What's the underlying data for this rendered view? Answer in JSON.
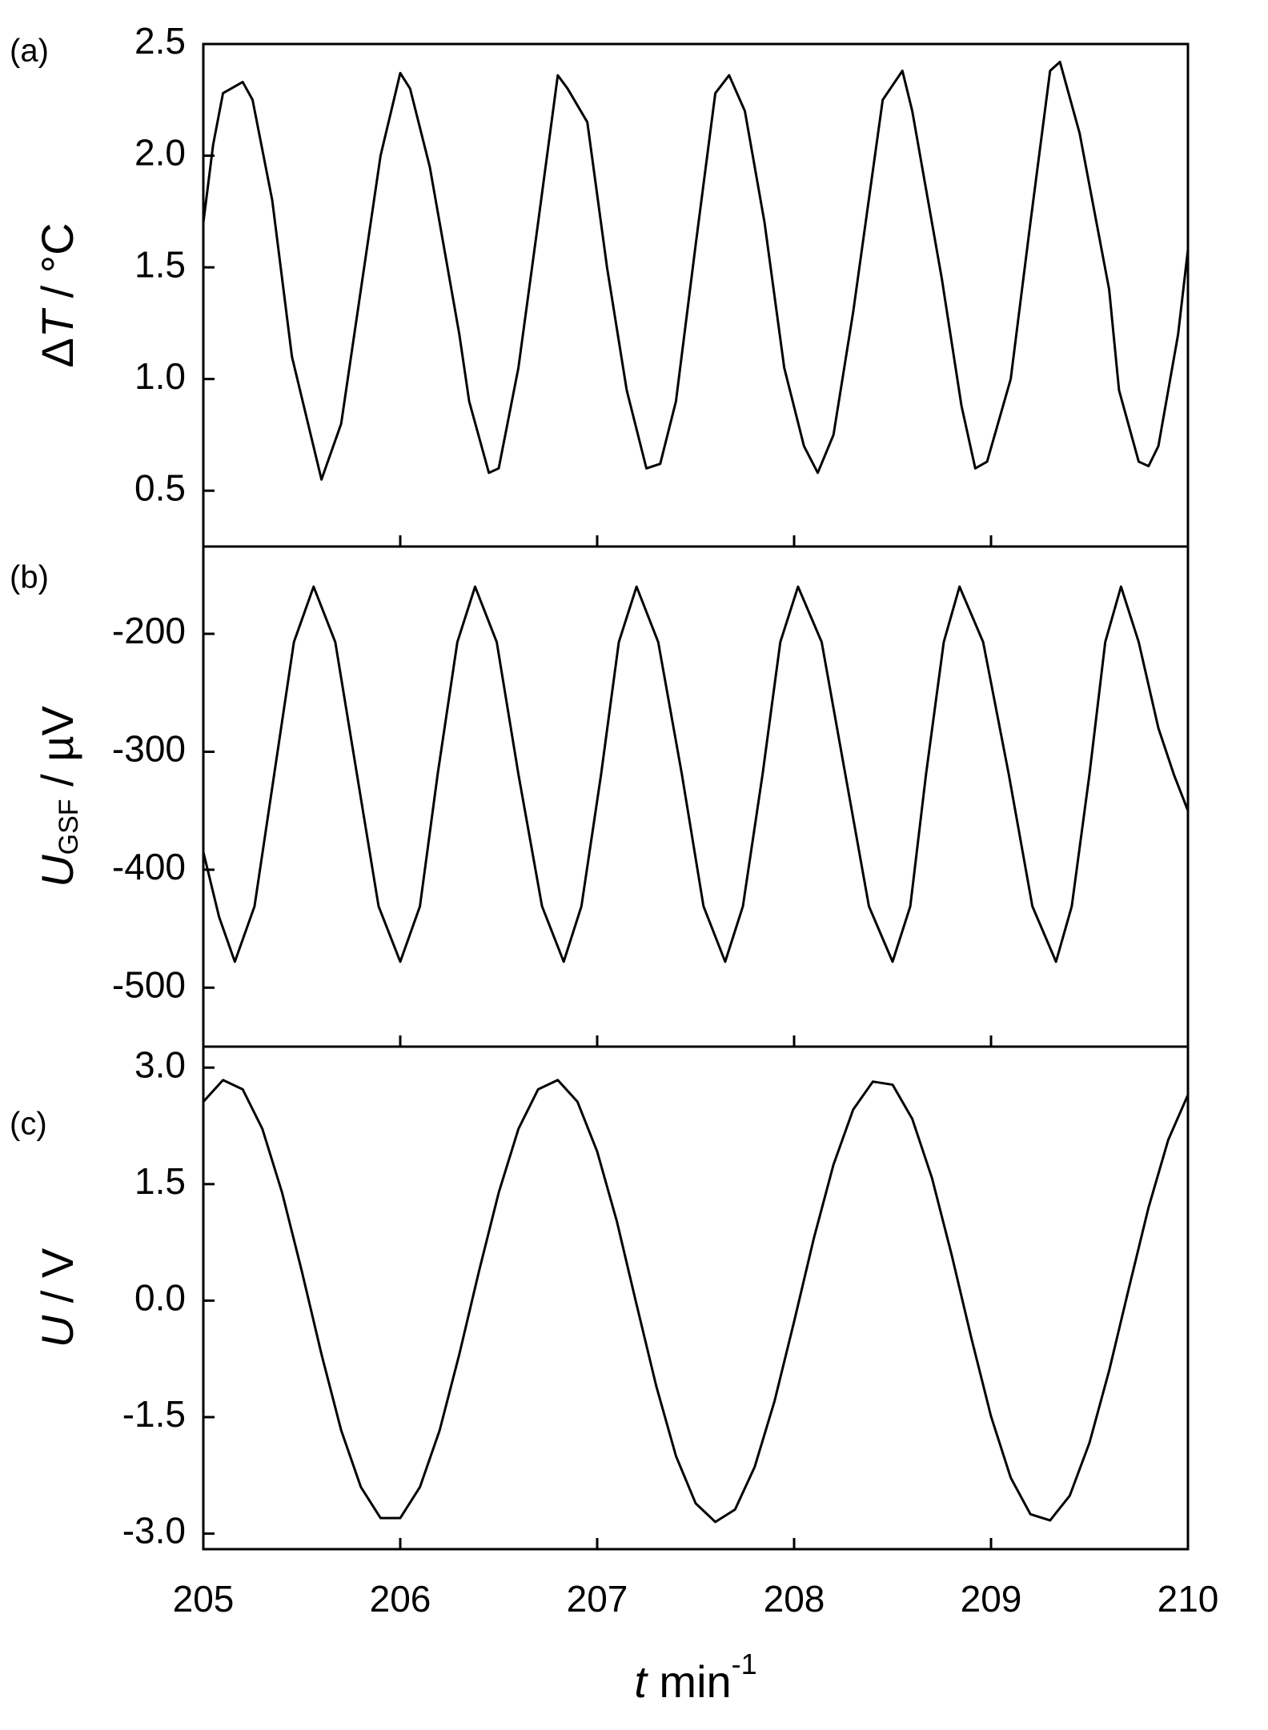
{
  "chart_data": [
    {
      "type": "line",
      "label": "(a)",
      "ylabel": [
        "Δ",
        "T",
        " / °C"
      ],
      "xlim": [
        205,
        210
      ],
      "xticks": [
        205,
        206,
        207,
        208,
        209,
        210
      ],
      "ylim": [
        0.25,
        2.5
      ],
      "yticks": [
        0.5,
        {
          "value": 1.0,
          "label": "1.0"
        },
        1.5,
        {
          "value": 2.0,
          "label": "2.0"
        },
        2.5
      ],
      "color": "#000000",
      "x": [
        205.0,
        205.05,
        205.1,
        205.2,
        205.25,
        205.35,
        205.45,
        205.6,
        205.7,
        205.8,
        205.9,
        206.0,
        206.05,
        206.15,
        206.3,
        206.35,
        206.45,
        206.5,
        206.6,
        206.7,
        206.8,
        206.85,
        206.95,
        207.05,
        207.15,
        207.25,
        207.32,
        207.4,
        207.5,
        207.6,
        207.67,
        207.75,
        207.85,
        207.95,
        208.05,
        208.12,
        208.2,
        208.3,
        208.45,
        208.55,
        208.6,
        208.75,
        208.85,
        208.92,
        208.98,
        209.1,
        209.2,
        209.3,
        209.35,
        209.45,
        209.6,
        209.65,
        209.75,
        209.8,
        209.85,
        209.95,
        210.0
      ],
      "values": [
        1.7,
        2.05,
        2.28,
        2.33,
        2.25,
        1.8,
        1.1,
        0.55,
        0.8,
        1.4,
        2.0,
        2.37,
        2.3,
        1.95,
        1.2,
        0.9,
        0.58,
        0.6,
        1.05,
        1.7,
        2.36,
        2.3,
        2.15,
        1.5,
        0.95,
        0.6,
        0.62,
        0.9,
        1.6,
        2.28,
        2.36,
        2.2,
        1.7,
        1.05,
        0.7,
        0.58,
        0.75,
        1.3,
        2.25,
        2.38,
        2.2,
        1.45,
        0.88,
        0.6,
        0.63,
        1.0,
        1.7,
        2.38,
        2.42,
        2.1,
        1.4,
        0.95,
        0.63,
        0.61,
        0.7,
        1.2,
        1.58
      ]
    },
    {
      "type": "line",
      "label": "(b)",
      "ylabel": [
        "U",
        "GSF",
        " / µV"
      ],
      "xlim": [
        205,
        210
      ],
      "xticks": [
        205,
        206,
        207,
        208,
        209,
        210
      ],
      "ylim": [
        -550,
        -126
      ],
      "yticks": [
        -500,
        -400,
        -300,
        -200
      ],
      "color": "#000000",
      "x": [
        205.0,
        205.08,
        205.16,
        205.26,
        205.36,
        205.46,
        205.56,
        205.67,
        205.78,
        205.89,
        206.0,
        206.1,
        206.19,
        206.29,
        206.38,
        206.49,
        206.6,
        206.72,
        206.83,
        206.92,
        207.02,
        207.11,
        207.2,
        207.31,
        207.43,
        207.54,
        207.65,
        207.74,
        207.84,
        207.93,
        208.02,
        208.14,
        208.26,
        208.38,
        208.5,
        208.59,
        208.67,
        208.76,
        208.84,
        208.96,
        209.09,
        209.21,
        209.33,
        209.41,
        209.5,
        209.58,
        209.66,
        209.75,
        209.85,
        209.93,
        210.0
      ],
      "values": [
        -385,
        -440,
        -478,
        -431,
        -319,
        -207,
        -160,
        -207,
        -319,
        -431,
        -478,
        -431,
        -319,
        -207,
        -160,
        -207,
        -319,
        -431,
        -478,
        -431,
        -319,
        -207,
        -160,
        -207,
        -319,
        -431,
        -478,
        -431,
        -319,
        -207,
        -160,
        -207,
        -319,
        -431,
        -478,
        -431,
        -319,
        -207,
        -160,
        -207,
        -319,
        -431,
        -478,
        -431,
        -319,
        -207,
        -160,
        -207,
        -280,
        -320,
        -350
      ]
    },
    {
      "type": "line",
      "label": "(c)",
      "ylabel": [
        "U",
        " / V"
      ],
      "xlabel": [
        "t",
        "  min",
        "-1"
      ],
      "xlim": [
        205,
        210
      ],
      "xticks": [
        205,
        206,
        207,
        208,
        209,
        210
      ],
      "ylim": [
        -3.2,
        3.27
      ],
      "yticks": [
        {
          "value": -3.0,
          "label": "-3.0"
        },
        -1.5,
        {
          "value": 0,
          "label": "0.0"
        },
        1.5,
        {
          "value": 3.0,
          "label": "3.0"
        }
      ],
      "color": "#000000",
      "x": [
        205.0,
        205.1,
        205.2,
        205.3,
        205.4,
        205.5,
        205.6,
        205.7,
        205.8,
        205.9,
        206.0,
        206.1,
        206.2,
        206.3,
        206.4,
        206.5,
        206.6,
        206.7,
        206.8,
        206.9,
        207.0,
        207.1,
        207.2,
        207.3,
        207.4,
        207.5,
        207.6,
        207.7,
        207.8,
        207.9,
        208.0,
        208.1,
        208.2,
        208.3,
        208.4,
        208.5,
        208.6,
        208.7,
        208.8,
        208.9,
        209.0,
        209.1,
        209.2,
        209.3,
        209.4,
        209.5,
        209.6,
        209.7,
        209.8,
        209.9,
        210.0
      ],
      "values": [
        2.56,
        2.84,
        2.72,
        2.21,
        1.39,
        0.38,
        -0.69,
        -1.67,
        -2.4,
        -2.8,
        -2.8,
        -2.4,
        -1.67,
        -0.69,
        0.38,
        1.39,
        2.21,
        2.72,
        2.84,
        2.56,
        1.92,
        1.02,
        -0.05,
        -1.1,
        -2.0,
        -2.61,
        -2.85,
        -2.69,
        -2.14,
        -1.3,
        -0.27,
        0.8,
        1.75,
        2.46,
        2.82,
        2.78,
        2.34,
        1.58,
        0.59,
        -0.48,
        -1.49,
        -2.28,
        -2.75,
        -2.83,
        -2.51,
        -1.83,
        -0.9,
        0.16,
        1.2,
        2.07,
        2.65
      ]
    }
  ]
}
